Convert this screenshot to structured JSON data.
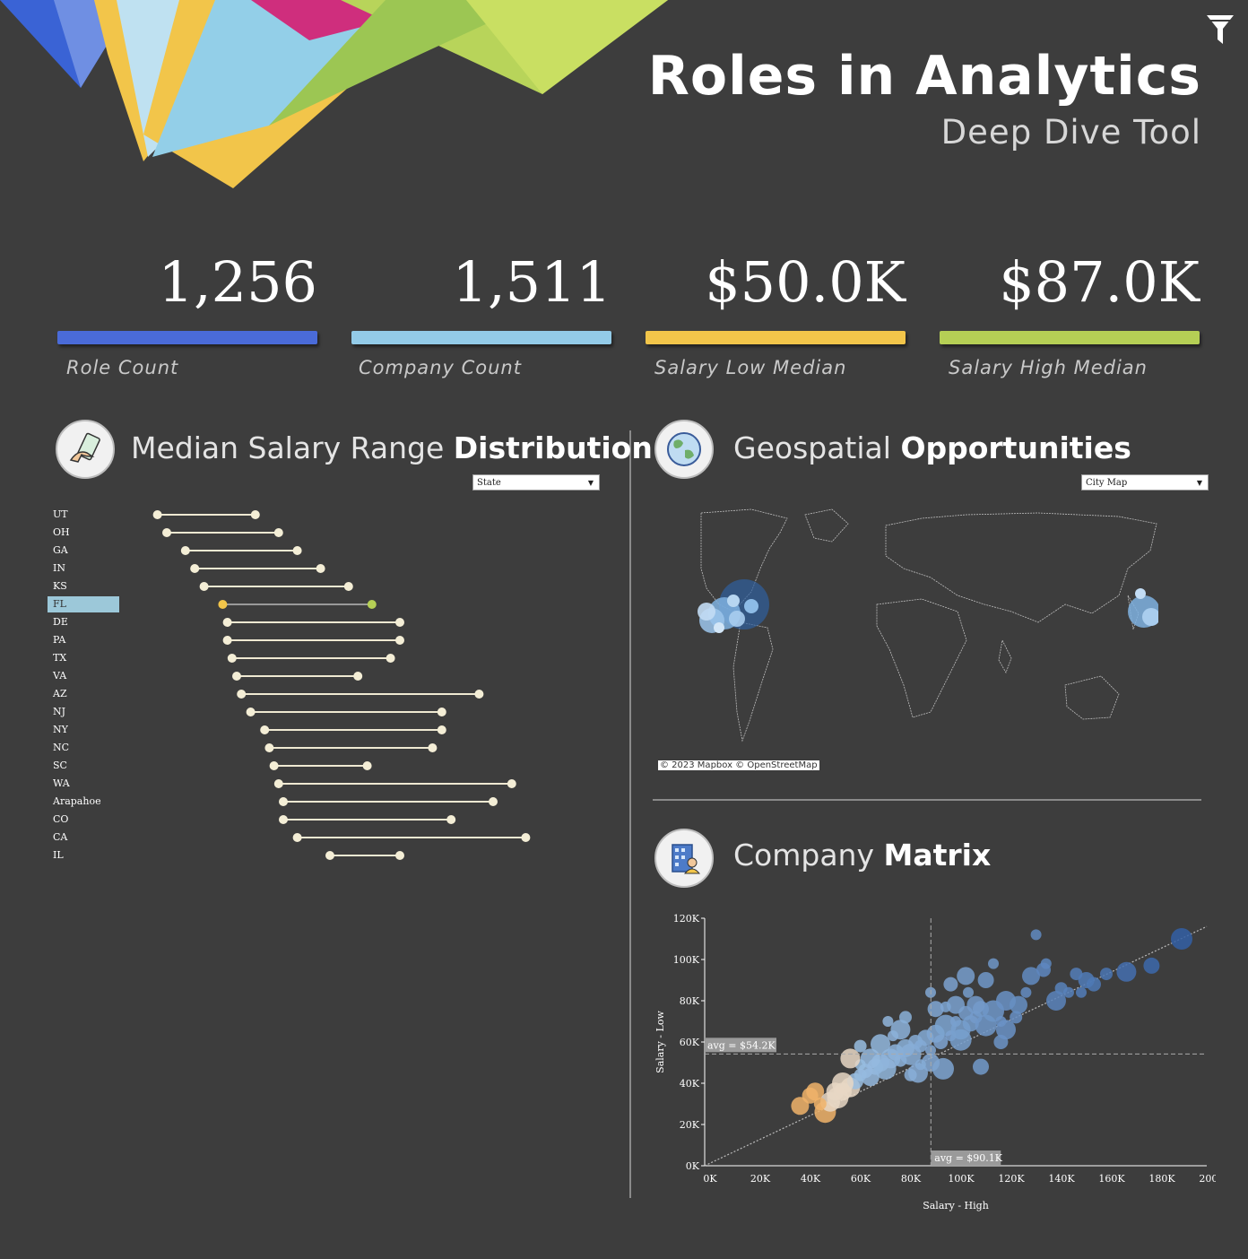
{
  "header": {
    "title": "Roles in Analytics",
    "subtitle": "Deep Dive Tool"
  },
  "colors": {
    "background": "#3d3d3d",
    "blue": "#4a6bd8",
    "light_blue": "#93cbe8",
    "yellow": "#f2c54a",
    "green": "#b5cf55"
  },
  "kpis": [
    {
      "value": "1,256",
      "label": "Role Count",
      "color": "#4a6bd8"
    },
    {
      "value": "1,511",
      "label": "Company Count",
      "color": "#93cbe8"
    },
    {
      "value": "$50.0K",
      "label": "Salary Low Median",
      "color": "#f2c54a"
    },
    {
      "value": "$87.0K",
      "label": "Salary High Median",
      "color": "#b5cf55"
    }
  ],
  "salary_section": {
    "title_light": "Median Salary Range",
    "title_bold": "Distribution",
    "dropdown_value": "State",
    "icon": "money-hand-icon"
  },
  "geo_section": {
    "title_light": "Geospatial",
    "title_bold": "Opportunities",
    "dropdown_value": "City Map",
    "icon": "globe-icon",
    "credit": "© 2023 Mapbox  © OpenStreetMap"
  },
  "matrix_section": {
    "title_light": "Company",
    "title_bold": "Matrix",
    "icon": "office-building-icon"
  },
  "chart_data": [
    {
      "type": "dumbbell",
      "categories": [
        "UT",
        "OH",
        "GA",
        "IN",
        "KS",
        "FL",
        "DE",
        "PA",
        "TX",
        "VA",
        "AZ",
        "NJ",
        "NY",
        "NC",
        "SC",
        "WA",
        "Arapahoe",
        "CO",
        "CA",
        "IL"
      ],
      "selected": "FL",
      "series": [
        {
          "name": "Salary Low Median",
          "values": [
            38,
            40,
            44,
            46,
            48,
            52,
            53,
            53,
            54,
            55,
            56,
            58,
            61,
            62,
            63,
            64,
            65,
            65,
            68,
            75
          ]
        },
        {
          "name": "Salary High Median",
          "values": [
            59,
            64,
            68,
            73,
            79,
            84,
            90,
            90,
            88,
            81,
            107,
            99,
            99,
            97,
            83,
            114,
            110,
            101,
            117,
            90
          ]
        }
      ]
    },
    {
      "type": "scatter",
      "xlabel": "Salary - High",
      "ylabel": "Salary - Low",
      "x_ticks": [
        "0K",
        "20K",
        "40K",
        "60K",
        "80K",
        "100K",
        "120K",
        "140K",
        "160K",
        "180K",
        "200K"
      ],
      "y_ticks": [
        "0K",
        "20K",
        "40K",
        "60K",
        "80K",
        "100K",
        "120K"
      ],
      "xlim": [
        0,
        200000
      ],
      "ylim": [
        0,
        120000
      ],
      "ref_lines": [
        {
          "axis": "y",
          "value": 54200,
          "label": "avg = $54.2K"
        },
        {
          "axis": "x",
          "value": 90100,
          "label": "avg = $90.1K"
        }
      ],
      "trend_line": true,
      "points": [
        [
          38000,
          29000
        ],
        [
          42000,
          34000
        ],
        [
          44000,
          36000
        ],
        [
          48000,
          26000
        ],
        [
          50000,
          31000
        ],
        [
          53000,
          33000
        ],
        [
          55000,
          36000
        ],
        [
          58000,
          38000
        ],
        [
          60000,
          41000
        ],
        [
          62000,
          44000
        ],
        [
          64000,
          46000
        ],
        [
          66000,
          43000
        ],
        [
          68000,
          48000
        ],
        [
          70000,
          50000
        ],
        [
          72000,
          47000
        ],
        [
          74000,
          52000
        ],
        [
          76000,
          55000
        ],
        [
          78000,
          51000
        ],
        [
          80000,
          57000
        ],
        [
          82000,
          54000
        ],
        [
          84000,
          60000
        ],
        [
          86000,
          58000
        ],
        [
          88000,
          62000
        ],
        [
          90000,
          56000
        ],
        [
          92000,
          64000
        ],
        [
          94000,
          60000
        ],
        [
          96000,
          68000
        ],
        [
          98000,
          63000
        ],
        [
          100000,
          70000
        ],
        [
          102000,
          66000
        ],
        [
          104000,
          74000
        ],
        [
          106000,
          69000
        ],
        [
          108000,
          72000
        ],
        [
          110000,
          76000
        ],
        [
          112000,
          68000
        ],
        [
          115000,
          75000
        ],
        [
          118000,
          70000
        ],
        [
          120000,
          80000
        ],
        [
          124000,
          72000
        ],
        [
          128000,
          84000
        ],
        [
          75000,
          63000
        ],
        [
          70000,
          59000
        ],
        [
          66000,
          52000
        ],
        [
          62000,
          49000
        ],
        [
          85000,
          45000
        ],
        [
          90000,
          50000
        ],
        [
          95000,
          47000
        ],
        [
          110000,
          48000
        ],
        [
          100000,
          78000
        ],
        [
          105000,
          84000
        ],
        [
          96000,
          77000
        ],
        [
          90000,
          84000
        ],
        [
          115000,
          98000
        ],
        [
          118000,
          60000
        ],
        [
          132000,
          112000
        ],
        [
          130000,
          92000
        ],
        [
          136000,
          98000
        ],
        [
          140000,
          80000
        ],
        [
          145000,
          84000
        ],
        [
          148000,
          93000
        ],
        [
          150000,
          84000
        ],
        [
          152000,
          90000
        ],
        [
          155000,
          88000
        ],
        [
          160000,
          93000
        ],
        [
          168000,
          94000
        ],
        [
          178000,
          97000
        ],
        [
          190000,
          110000
        ],
        [
          73000,
          70000
        ],
        [
          78000,
          66000
        ],
        [
          82000,
          44000
        ],
        [
          86000,
          49000
        ],
        [
          102000,
          61000
        ],
        [
          108000,
          78000
        ],
        [
          112000,
          90000
        ],
        [
          58000,
          52000
        ],
        [
          55000,
          40000
        ],
        [
          52000,
          36000
        ],
        [
          46000,
          30000
        ],
        [
          62000,
          58000
        ],
        [
          80000,
          72000
        ],
        [
          92000,
          76000
        ],
        [
          98000,
          88000
        ],
        [
          104000,
          92000
        ],
        [
          120000,
          66000
        ],
        [
          125000,
          78000
        ],
        [
          135000,
          95000
        ],
        [
          142000,
          86000
        ]
      ]
    }
  ]
}
